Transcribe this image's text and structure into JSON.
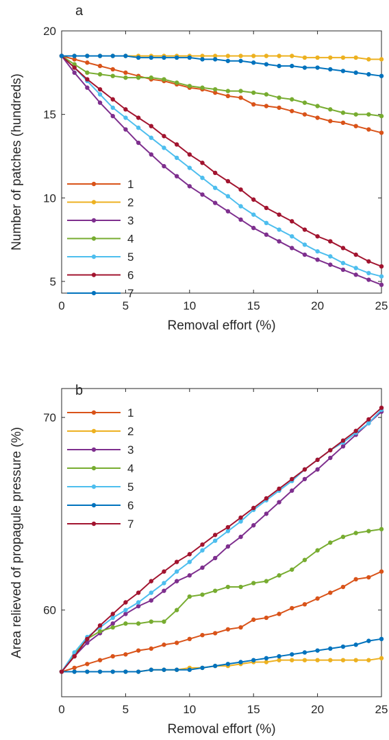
{
  "chart_data": [
    {
      "type": "line",
      "panel_label": "a",
      "xlabel": "Removal effort (%)",
      "ylabel": "Number of patches (hundreds)",
      "xlim": [
        0,
        25
      ],
      "ylim": [
        4.3,
        20
      ],
      "xticks": [
        0,
        5,
        10,
        15,
        20,
        25
      ],
      "yticks": [
        5,
        10,
        15,
        20
      ],
      "grid": false,
      "legend_position": "lower-left",
      "x": [
        0,
        1,
        2,
        3,
        4,
        5,
        6,
        7,
        8,
        9,
        10,
        11,
        12,
        13,
        14,
        15,
        16,
        17,
        18,
        19,
        20,
        21,
        22,
        23,
        24,
        25
      ],
      "series": [
        {
          "name": "1",
          "color": "#D95319",
          "values": [
            18.5,
            18.3,
            18.1,
            17.9,
            17.7,
            17.5,
            17.3,
            17.1,
            17.0,
            16.8,
            16.6,
            16.5,
            16.3,
            16.1,
            16.0,
            15.6,
            15.5,
            15.4,
            15.2,
            15.0,
            14.8,
            14.6,
            14.5,
            14.3,
            14.1,
            13.9
          ]
        },
        {
          "name": "2",
          "color": "#EDB120",
          "values": [
            18.5,
            18.5,
            18.5,
            18.5,
            18.5,
            18.5,
            18.5,
            18.5,
            18.5,
            18.5,
            18.5,
            18.5,
            18.5,
            18.5,
            18.5,
            18.5,
            18.5,
            18.5,
            18.5,
            18.4,
            18.4,
            18.4,
            18.4,
            18.4,
            18.3,
            18.3
          ]
        },
        {
          "name": "3",
          "color": "#7E2F8E",
          "values": [
            18.5,
            17.5,
            16.6,
            15.7,
            14.9,
            14.1,
            13.3,
            12.6,
            11.9,
            11.3,
            10.7,
            10.2,
            9.7,
            9.2,
            8.7,
            8.2,
            7.8,
            7.4,
            7.0,
            6.6,
            6.3,
            6.0,
            5.7,
            5.4,
            5.1,
            4.8
          ]
        },
        {
          "name": "4",
          "color": "#77AC30",
          "values": [
            18.5,
            18.0,
            17.5,
            17.4,
            17.3,
            17.2,
            17.2,
            17.2,
            17.1,
            16.9,
            16.7,
            16.6,
            16.5,
            16.4,
            16.4,
            16.3,
            16.2,
            16.0,
            15.9,
            15.7,
            15.5,
            15.3,
            15.1,
            15.0,
            15.0,
            14.9
          ]
        },
        {
          "name": "5",
          "color": "#4DBEEE",
          "values": [
            18.5,
            17.8,
            17.0,
            16.2,
            15.4,
            14.8,
            14.2,
            13.6,
            13.0,
            12.4,
            11.8,
            11.2,
            10.6,
            10.1,
            9.5,
            9.0,
            8.5,
            8.1,
            7.7,
            7.2,
            6.8,
            6.5,
            6.1,
            5.8,
            5.5,
            5.3
          ]
        },
        {
          "name": "6",
          "color": "#A2142F",
          "values": [
            18.5,
            17.8,
            17.1,
            16.5,
            15.9,
            15.3,
            14.8,
            14.3,
            13.7,
            13.2,
            12.6,
            12.1,
            11.5,
            11.0,
            10.5,
            9.9,
            9.4,
            9.0,
            8.6,
            8.1,
            7.7,
            7.4,
            7.0,
            6.6,
            6.2,
            5.9
          ]
        },
        {
          "name": "7",
          "color": "#0072BD",
          "values": [
            18.5,
            18.5,
            18.5,
            18.5,
            18.5,
            18.5,
            18.4,
            18.4,
            18.4,
            18.4,
            18.4,
            18.3,
            18.3,
            18.2,
            18.2,
            18.1,
            18.0,
            17.9,
            17.9,
            17.8,
            17.8,
            17.7,
            17.6,
            17.5,
            17.4,
            17.3
          ]
        }
      ]
    },
    {
      "type": "line",
      "panel_label": "b",
      "xlabel": "Removal effort (%)",
      "ylabel": "Area relieved of propagule pressure (%)",
      "xlim": [
        0,
        25
      ],
      "ylim": [
        55.5,
        71.5
      ],
      "xticks": [
        0,
        5,
        10,
        15,
        20,
        25
      ],
      "yticks": [
        60,
        70
      ],
      "grid": false,
      "legend_position": "upper-left",
      "x": [
        0,
        1,
        2,
        3,
        4,
        5,
        6,
        7,
        8,
        9,
        10,
        11,
        12,
        13,
        14,
        15,
        16,
        17,
        18,
        19,
        20,
        21,
        22,
        23,
        24,
        25
      ],
      "series": [
        {
          "name": "1",
          "color": "#D95319",
          "values": [
            56.8,
            57.0,
            57.2,
            57.4,
            57.6,
            57.7,
            57.9,
            58.0,
            58.2,
            58.3,
            58.5,
            58.7,
            58.8,
            59.0,
            59.1,
            59.5,
            59.6,
            59.8,
            60.1,
            60.3,
            60.6,
            60.9,
            61.2,
            61.6,
            61.7,
            62.0
          ]
        },
        {
          "name": "2",
          "color": "#EDB120",
          "values": [
            56.8,
            56.8,
            56.8,
            56.8,
            56.8,
            56.8,
            56.8,
            56.9,
            56.9,
            56.9,
            57.0,
            57.0,
            57.1,
            57.1,
            57.2,
            57.3,
            57.3,
            57.4,
            57.4,
            57.4,
            57.4,
            57.4,
            57.4,
            57.4,
            57.4,
            57.5
          ]
        },
        {
          "name": "3",
          "color": "#7E2F8E",
          "values": [
            56.8,
            57.6,
            58.3,
            58.8,
            59.3,
            59.8,
            60.2,
            60.5,
            61.0,
            61.5,
            61.8,
            62.2,
            62.7,
            63.3,
            63.8,
            64.4,
            65.0,
            65.6,
            66.2,
            66.8,
            67.3,
            67.9,
            68.5,
            69.1,
            69.7,
            70.3
          ]
        },
        {
          "name": "4",
          "color": "#77AC30",
          "values": [
            56.8,
            57.7,
            58.5,
            58.9,
            59.1,
            59.3,
            59.3,
            59.4,
            59.4,
            60.0,
            60.7,
            60.8,
            61.0,
            61.2,
            61.2,
            61.4,
            61.5,
            61.8,
            62.1,
            62.6,
            63.1,
            63.5,
            63.8,
            64.0,
            64.1,
            64.2
          ]
        },
        {
          "name": "5",
          "color": "#4DBEEE",
          "values": [
            56.8,
            57.8,
            58.6,
            59.1,
            59.6,
            60.0,
            60.4,
            60.9,
            61.4,
            62.0,
            62.5,
            63.1,
            63.6,
            64.1,
            64.6,
            65.2,
            65.7,
            66.2,
            66.7,
            67.3,
            67.8,
            68.3,
            68.7,
            69.2,
            69.7,
            70.4
          ]
        },
        {
          "name": "6",
          "color": "#0072BD",
          "values": [
            56.8,
            56.8,
            56.8,
            56.8,
            56.8,
            56.8,
            56.8,
            56.9,
            56.9,
            56.9,
            56.9,
            57.0,
            57.1,
            57.2,
            57.3,
            57.4,
            57.5,
            57.6,
            57.7,
            57.8,
            57.9,
            58.0,
            58.1,
            58.2,
            58.4,
            58.5
          ]
        },
        {
          "name": "7",
          "color": "#A2142F",
          "values": [
            56.8,
            57.6,
            58.5,
            59.2,
            59.8,
            60.4,
            60.9,
            61.5,
            62.0,
            62.5,
            62.9,
            63.4,
            63.9,
            64.3,
            64.8,
            65.3,
            65.8,
            66.3,
            66.8,
            67.3,
            67.8,
            68.3,
            68.8,
            69.3,
            69.9,
            70.5
          ]
        }
      ]
    }
  ]
}
